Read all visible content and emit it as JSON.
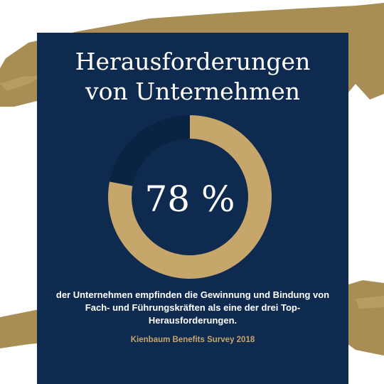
{
  "colors": {
    "navy": "#0e2a4f",
    "gold": "#c6a66b",
    "remainder": "#0b2343",
    "brush": "#a88d55",
    "text": "#ffffff"
  },
  "title": {
    "line1": "Herausforderungen",
    "line2": "von Unternehmen"
  },
  "description": "der Unternehmen empfinden die Gewinnung und Bindung von Fach- und Führungskräften als eine der drei Top-Herausforderungen.",
  "source": "Kienbaum Benefits Survey 2018",
  "chart_data": {
    "type": "pie",
    "style": "donut",
    "title": "",
    "categories": [
      "",
      ""
    ],
    "values": [
      78,
      22
    ],
    "unit": "%",
    "center_label": "78 %",
    "legend": "none"
  }
}
